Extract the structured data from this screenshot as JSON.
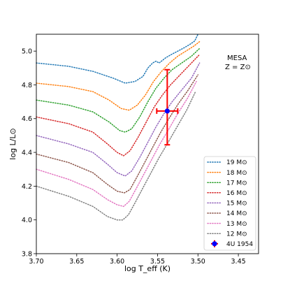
{
  "chart_data": {
    "type": "line",
    "title": "",
    "xlabel": "log T_eff (K)",
    "ylabel": "log L/L⊙",
    "xlim": [
      3.7,
      3.425
    ],
    "ylim": [
      3.8,
      5.1
    ],
    "x_inverted": true,
    "x_ticks": [
      3.7,
      3.65,
      3.6,
      3.55,
      3.5,
      3.45
    ],
    "x_tick_labels": [
      "3.70",
      "3.65",
      "3.60",
      "3.55",
      "3.50",
      "3.45"
    ],
    "y_ticks": [
      3.8,
      4.0,
      4.2,
      4.4,
      4.6,
      4.8,
      5.0
    ],
    "y_tick_labels": [
      "3.8",
      "4.0",
      "4.2",
      "4.4",
      "4.6",
      "4.8",
      "5.0"
    ],
    "grid": false,
    "legend_position": "bottom-right",
    "annotation": {
      "line1": "MESA",
      "line2": "Z = Z⊙"
    },
    "series": [
      {
        "name": "19 M⊙",
        "color": "#1f77b4",
        "x": [
          3.7,
          3.66,
          3.63,
          3.605,
          3.59,
          3.578,
          3.568,
          3.562,
          3.556,
          3.552,
          3.548,
          3.54,
          3.533,
          3.525,
          3.517,
          3.51,
          3.504,
          3.5
        ],
        "y": [
          4.93,
          4.91,
          4.88,
          4.84,
          4.81,
          4.82,
          4.85,
          4.9,
          4.93,
          4.94,
          4.93,
          4.96,
          4.98,
          5.0,
          5.02,
          5.04,
          5.06,
          5.1
        ]
      },
      {
        "name": "18 M⊙",
        "color": "#ff7f0e",
        "x": [
          3.7,
          3.66,
          3.63,
          3.61,
          3.595,
          3.585,
          3.575,
          3.565,
          3.555,
          3.545,
          3.535,
          3.525,
          3.515,
          3.505,
          3.497
        ],
        "y": [
          4.81,
          4.79,
          4.76,
          4.71,
          4.66,
          4.65,
          4.68,
          4.74,
          4.82,
          4.88,
          4.93,
          4.97,
          5.0,
          5.03,
          5.06
        ]
      },
      {
        "name": "17 M⊙",
        "color": "#2ca02c",
        "x": [
          3.7,
          3.66,
          3.63,
          3.61,
          3.597,
          3.59,
          3.582,
          3.572,
          3.562,
          3.552,
          3.542,
          3.532,
          3.52,
          3.508,
          3.497
        ],
        "y": [
          4.71,
          4.68,
          4.64,
          4.58,
          4.53,
          4.52,
          4.54,
          4.61,
          4.7,
          4.78,
          4.84,
          4.89,
          4.93,
          4.97,
          5.02
        ]
      },
      {
        "name": "16 M⊙",
        "color": "#d62728",
        "x": [
          3.7,
          3.66,
          3.63,
          3.612,
          3.6,
          3.592,
          3.584,
          3.574,
          3.564,
          3.554,
          3.544,
          3.534,
          3.522,
          3.51,
          3.498
        ],
        "y": [
          4.61,
          4.57,
          4.52,
          4.45,
          4.4,
          4.38,
          4.41,
          4.49,
          4.58,
          4.67,
          4.74,
          4.8,
          4.86,
          4.92,
          4.98
        ]
      },
      {
        "name": "15 M⊙",
        "color": "#9467bd",
        "x": [
          3.7,
          3.66,
          3.63,
          3.612,
          3.6,
          3.59,
          3.582,
          3.572,
          3.562,
          3.552,
          3.542,
          3.532,
          3.52,
          3.508,
          3.498
        ],
        "y": [
          4.5,
          4.45,
          4.4,
          4.33,
          4.28,
          4.26,
          4.29,
          4.37,
          4.46,
          4.55,
          4.63,
          4.7,
          4.77,
          4.84,
          4.93
        ]
      },
      {
        "name": "14 M⊙",
        "color": "#8c564b",
        "x": [
          3.7,
          3.66,
          3.63,
          3.612,
          3.6,
          3.591,
          3.584,
          3.576,
          3.566,
          3.556,
          3.546,
          3.536,
          3.524,
          3.512,
          3.5
        ],
        "y": [
          4.39,
          4.34,
          4.28,
          4.21,
          4.17,
          4.16,
          4.18,
          4.25,
          4.34,
          4.43,
          4.52,
          4.6,
          4.69,
          4.77,
          4.86
        ]
      },
      {
        "name": "13 M⊙",
        "color": "#e377c2",
        "x": [
          3.7,
          3.66,
          3.63,
          3.612,
          3.6,
          3.592,
          3.585,
          3.577,
          3.567,
          3.557,
          3.547,
          3.537,
          3.525,
          3.513,
          3.502
        ],
        "y": [
          4.3,
          4.24,
          4.18,
          4.12,
          4.09,
          4.08,
          4.11,
          4.18,
          4.27,
          4.36,
          4.45,
          4.53,
          4.63,
          4.72,
          4.82
        ]
      },
      {
        "name": "12 M⊙",
        "color": "#7f7f7f",
        "x": [
          3.7,
          3.66,
          3.63,
          3.612,
          3.6,
          3.593,
          3.586,
          3.578,
          3.568,
          3.558,
          3.548,
          3.538,
          3.526,
          3.514,
          3.503
        ],
        "y": [
          4.2,
          4.14,
          4.08,
          4.02,
          4.0,
          4.0,
          4.03,
          4.1,
          4.19,
          4.28,
          4.37,
          4.45,
          4.55,
          4.65,
          4.76
        ]
      }
    ],
    "observation": {
      "name": "4U 1954",
      "x": 3.538,
      "y": 4.645,
      "x_err": 0.013,
      "y_err_low": 0.2,
      "y_err_high": 0.245,
      "marker_color": "#0000ff",
      "errorbar_color": "#ff0000"
    }
  }
}
